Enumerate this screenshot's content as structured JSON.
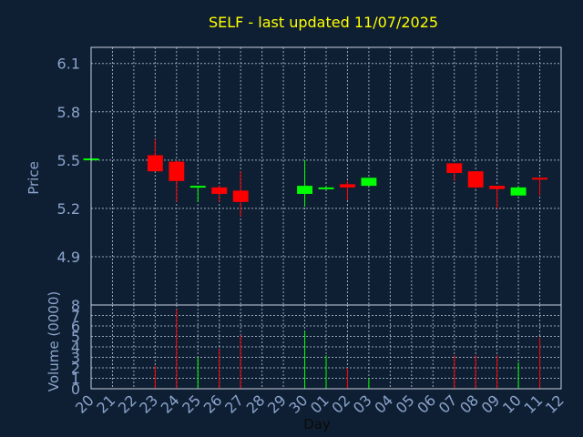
{
  "chart_data": [
    {
      "type": "candlestick",
      "title": "SELF - last updated 11/07/2025",
      "xlabel": "",
      "ylabel": "Price",
      "ylim": [
        4.6,
        6.2
      ],
      "y_ticks": [
        "4.9",
        "5.2",
        "5.5",
        "5.8",
        "6.1"
      ],
      "grid": true,
      "categories": [
        "20",
        "21",
        "22",
        "23",
        "24",
        "25",
        "26",
        "27",
        "28",
        "29",
        "30",
        "01",
        "02",
        "03",
        "04",
        "05",
        "06",
        "07",
        "08",
        "09",
        "10",
        "11",
        "12"
      ],
      "candles": [
        {
          "day": "20",
          "open": 5.51,
          "high": 5.51,
          "low": 5.51,
          "close": 5.51,
          "color": "up"
        },
        {
          "day": "23",
          "open": 5.53,
          "high": 5.63,
          "low": 5.43,
          "close": 5.43,
          "color": "down"
        },
        {
          "day": "24",
          "open": 5.49,
          "high": 5.5,
          "low": 5.24,
          "close": 5.37,
          "color": "down"
        },
        {
          "day": "25",
          "open": 5.33,
          "high": 5.34,
          "low": 5.24,
          "close": 5.34,
          "color": "up"
        },
        {
          "day": "26",
          "open": 5.33,
          "high": 5.34,
          "low": 5.24,
          "close": 5.29,
          "color": "down"
        },
        {
          "day": "27",
          "open": 5.31,
          "high": 5.43,
          "low": 5.15,
          "close": 5.24,
          "color": "down"
        },
        {
          "day": "30",
          "open": 5.29,
          "high": 5.5,
          "low": 5.21,
          "close": 5.34,
          "color": "up"
        },
        {
          "day": "01",
          "open": 5.32,
          "high": 5.34,
          "low": 5.32,
          "close": 5.33,
          "color": "up"
        },
        {
          "day": "02",
          "open": 5.35,
          "high": 5.37,
          "low": 5.25,
          "close": 5.33,
          "color": "down"
        },
        {
          "day": "03",
          "open": 5.34,
          "high": 5.39,
          "low": 5.34,
          "close": 5.39,
          "color": "up"
        },
        {
          "day": "07",
          "open": 5.48,
          "high": 5.48,
          "low": 5.37,
          "close": 5.42,
          "color": "down"
        },
        {
          "day": "08",
          "open": 5.43,
          "high": 5.43,
          "low": 5.32,
          "close": 5.33,
          "color": "down"
        },
        {
          "day": "09",
          "open": 5.34,
          "high": 5.34,
          "low": 5.2,
          "close": 5.32,
          "color": "down"
        },
        {
          "day": "10",
          "open": 5.28,
          "high": 5.34,
          "low": 5.28,
          "close": 5.33,
          "color": "up"
        },
        {
          "day": "11",
          "open": 5.39,
          "high": 5.39,
          "low": 5.28,
          "close": 5.38,
          "color": "down"
        }
      ]
    },
    {
      "type": "bar",
      "xlabel": "Day",
      "ylabel": "Volume (0000)",
      "ylim": [
        0,
        8
      ],
      "y_ticks": [
        "0",
        "1",
        "2",
        "3",
        "4",
        "5",
        "6",
        "7",
        "8"
      ],
      "grid": true,
      "categories": [
        "20",
        "21",
        "22",
        "23",
        "24",
        "25",
        "26",
        "27",
        "28",
        "29",
        "30",
        "01",
        "02",
        "03",
        "04",
        "05",
        "06",
        "07",
        "08",
        "09",
        "10",
        "11",
        "12"
      ],
      "bars": [
        {
          "day": "23",
          "value": 2.2,
          "color": "down"
        },
        {
          "day": "24",
          "value": 7.6,
          "color": "down"
        },
        {
          "day": "25",
          "value": 3.0,
          "color": "up"
        },
        {
          "day": "26",
          "value": 3.8,
          "color": "down"
        },
        {
          "day": "27",
          "value": 5.1,
          "color": "down"
        },
        {
          "day": "30",
          "value": 5.5,
          "color": "up"
        },
        {
          "day": "01",
          "value": 3.2,
          "color": "up"
        },
        {
          "day": "02",
          "value": 2.0,
          "color": "down"
        },
        {
          "day": "03",
          "value": 1.0,
          "color": "up"
        },
        {
          "day": "07",
          "value": 3.2,
          "color": "down"
        },
        {
          "day": "08",
          "value": 3.2,
          "color": "down"
        },
        {
          "day": "09",
          "value": 3.2,
          "color": "down"
        },
        {
          "day": "10",
          "value": 2.5,
          "color": "up"
        },
        {
          "day": "11",
          "value": 4.9,
          "color": "down"
        }
      ]
    }
  ],
  "colors": {
    "background": "#0f1f33",
    "title": "#ffff00",
    "axis_text": "#8aa4cc",
    "frame": "#c8d2e0",
    "grid": "#9aa6b8",
    "up": "#00ff00",
    "down": "#ff0000"
  }
}
